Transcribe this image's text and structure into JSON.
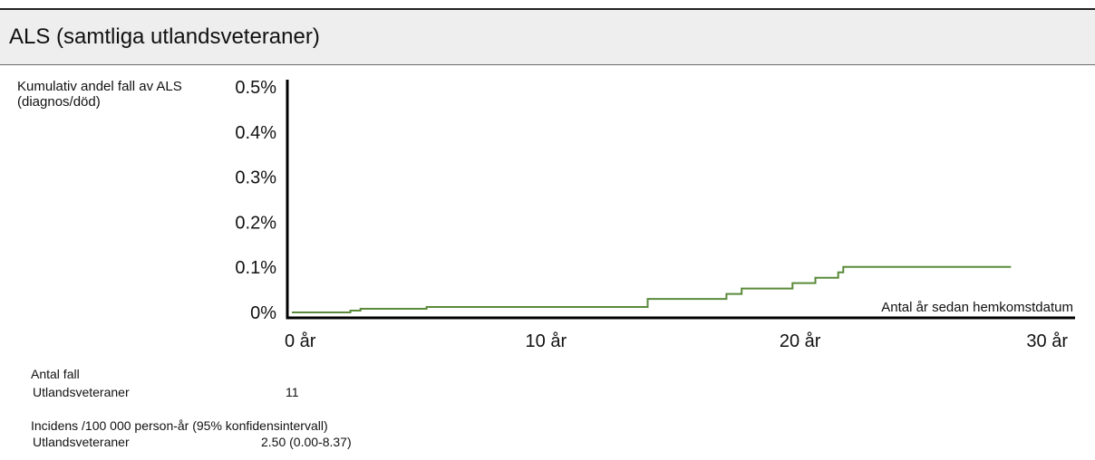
{
  "header": {
    "title": "ALS (samtliga utlandsveteraner)"
  },
  "chart_data": {
    "type": "line",
    "title": "",
    "ylabel": "Kumulativ andel fall av ALS (diagnos/död)",
    "xlabel": "Antal år sedan hemkomstdatum",
    "xlim": [
      0,
      30
    ],
    "ylim": [
      0,
      0.5
    ],
    "y_ticks": [
      "0%",
      "0.1%",
      "0.2%",
      "0.3%",
      "0.4%",
      "0.5%"
    ],
    "x_ticks": [
      "0 år",
      "10 år",
      "20 år",
      "30 år"
    ],
    "grid": false,
    "series": [
      {
        "color": "#5a8a3a",
        "step": true,
        "x": [
          0,
          2.3,
          2.7,
          5.3,
          13.9,
          14.0,
          16.9,
          17.1,
          17.7,
          19.7,
          20.6,
          21.5,
          21.7,
          28.3
        ],
        "y": [
          0.0,
          0.004,
          0.008,
          0.012,
          0.012,
          0.03,
          0.03,
          0.041,
          0.053,
          0.065,
          0.077,
          0.089,
          0.101,
          0.101
        ]
      }
    ]
  },
  "stats": {
    "antal_fall": {
      "heading": "Antal fall",
      "group_label": "Utlandsveteraner",
      "value": "11"
    },
    "incidens": {
      "heading": "Incidens /100 000 person-år (95% konfidensintervall)",
      "group_label": "Utlandsveteraner",
      "value": "2.50 (0.00-8.37)"
    }
  }
}
